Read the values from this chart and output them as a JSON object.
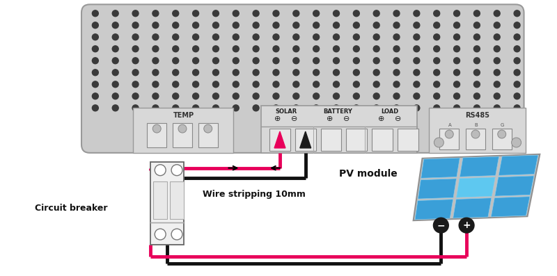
{
  "bg_color": "#ffffff",
  "wire_color_pos": "#e8005a",
  "wire_color_neg": "#111111",
  "pv_blue": "#3a9fd8",
  "pv_blue_light": "#5ec8f0",
  "pv_frame": "#b8b8b8",
  "controller_fc": "#cbcbcb",
  "controller_ec": "#999999",
  "panel_fc": "#e0e0e0",
  "panel_ec": "#888888",
  "dot_color": "#3a3a3a",
  "solar_label": "SOLAR",
  "battery_label": "BATTERY",
  "load_label": "LOAD",
  "temp_label": "TEMP",
  "rs485_label": "RS485",
  "pv_label": "PV module",
  "breaker_label": "Circuit breaker",
  "wire_label": "Wire stripping 10mm"
}
